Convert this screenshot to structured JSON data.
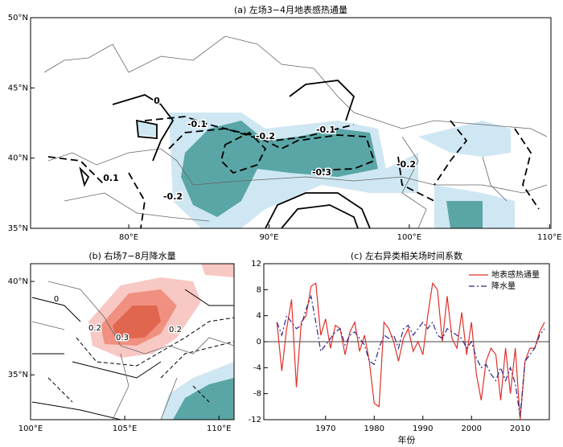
{
  "chart_data": [
    {
      "type": "contour_map",
      "title": "(a) 左场3−4月地表感热通量",
      "xlim": [
        73,
        110.1
      ],
      "ylim": [
        35,
        50
      ],
      "xticks": [
        {
          "value": 80,
          "label": "80°E"
        },
        {
          "value": 90,
          "label": "90°E"
        },
        {
          "value": 100,
          "label": "100°E"
        },
        {
          "value": 110,
          "label": "110°E"
        }
      ],
      "yticks": [
        {
          "value": 35,
          "label": "35°N"
        },
        {
          "value": 40,
          "label": "40°N"
        },
        {
          "value": 45,
          "label": "45°N"
        },
        {
          "value": 50,
          "label": "50°N"
        }
      ],
      "contour_labels": [
        "0",
        "-0.1",
        "-0.2",
        "-0.1",
        "-0.3",
        "-0.2",
        "0.1",
        "-0.2"
      ]
    },
    {
      "type": "contour_map",
      "title": "(b) 右场7−8月降水量",
      "xlim": [
        100,
        110.8
      ],
      "ylim": [
        32.6,
        40.95
      ],
      "xticks": [
        {
          "value": 100,
          "label": "100°E"
        },
        {
          "value": 105,
          "label": "105°E"
        },
        {
          "value": 110,
          "label": "110°E"
        }
      ],
      "yticks": [
        {
          "value": 35,
          "label": "35°N"
        },
        {
          "value": 40,
          "label": "40°N"
        }
      ],
      "contour_labels": [
        "0.3",
        "0.2",
        "0.2",
        "0"
      ]
    },
    {
      "type": "line",
      "title": "(c) 左右异类相关场时间系数",
      "xlabel": "年份",
      "x": [
        1960,
        1961,
        1962,
        1963,
        1964,
        1965,
        1966,
        1967,
        1968,
        1969,
        1970,
        1971,
        1972,
        1973,
        1974,
        1975,
        1976,
        1977,
        1978,
        1979,
        1980,
        1981,
        1982,
        1983,
        1984,
        1985,
        1986,
        1987,
        1988,
        1989,
        1990,
        1991,
        1992,
        1993,
        1994,
        1995,
        1996,
        1997,
        1998,
        1999,
        2000,
        2001,
        2002,
        2003,
        2004,
        2005,
        2006,
        2007,
        2008,
        2009,
        2010,
        2011,
        2012,
        2013,
        2014,
        2015
      ],
      "xlim": [
        1957.3,
        2016
      ],
      "ylim": [
        -12,
        12
      ],
      "xticks": [
        1970,
        1980,
        1990,
        2000,
        2010
      ],
      "yticks": [
        -12,
        -8,
        -4,
        0,
        4,
        8,
        12
      ],
      "legend": "upper right",
      "series": [
        {
          "name": "地表感热通量",
          "color": "#e0302a",
          "dash": false,
          "values": [
            3,
            -4.5,
            2,
            6.5,
            -7,
            3,
            4,
            8.5,
            9,
            1,
            3.5,
            -1,
            2.5,
            2,
            -2,
            1.5,
            3,
            -1.5,
            1,
            -3,
            -9.5,
            -10,
            3,
            2,
            0,
            -3,
            0.5,
            2,
            -1.5,
            0,
            -2,
            4,
            9,
            8,
            0,
            7,
            0.5,
            -1,
            4.5,
            -2,
            3,
            -5,
            -9,
            -3,
            -1,
            -2,
            -9,
            -1,
            -8,
            -1,
            -12,
            -3,
            -1,
            -1,
            1.5,
            3
          ]
        },
        {
          "name": "降水量",
          "color": "#2a2a8a",
          "dash": true,
          "values": [
            3,
            1,
            4,
            3,
            2,
            2.5,
            5,
            7,
            3,
            -1.5,
            -0.5,
            0.5,
            1.5,
            2,
            -0.5,
            1,
            1.5,
            0.5,
            -0.5,
            -3,
            -3.5,
            -1,
            1,
            0.5,
            1,
            -1,
            2,
            2.5,
            1,
            2,
            3,
            2,
            3,
            1,
            0.5,
            2,
            1.5,
            1,
            0.5,
            -1,
            0,
            -2.5,
            -4,
            -3.5,
            -5,
            -6,
            -4,
            -6,
            -4,
            -6.5,
            -11.5,
            -3,
            -2,
            -1,
            1,
            2
          ]
        }
      ]
    }
  ]
}
